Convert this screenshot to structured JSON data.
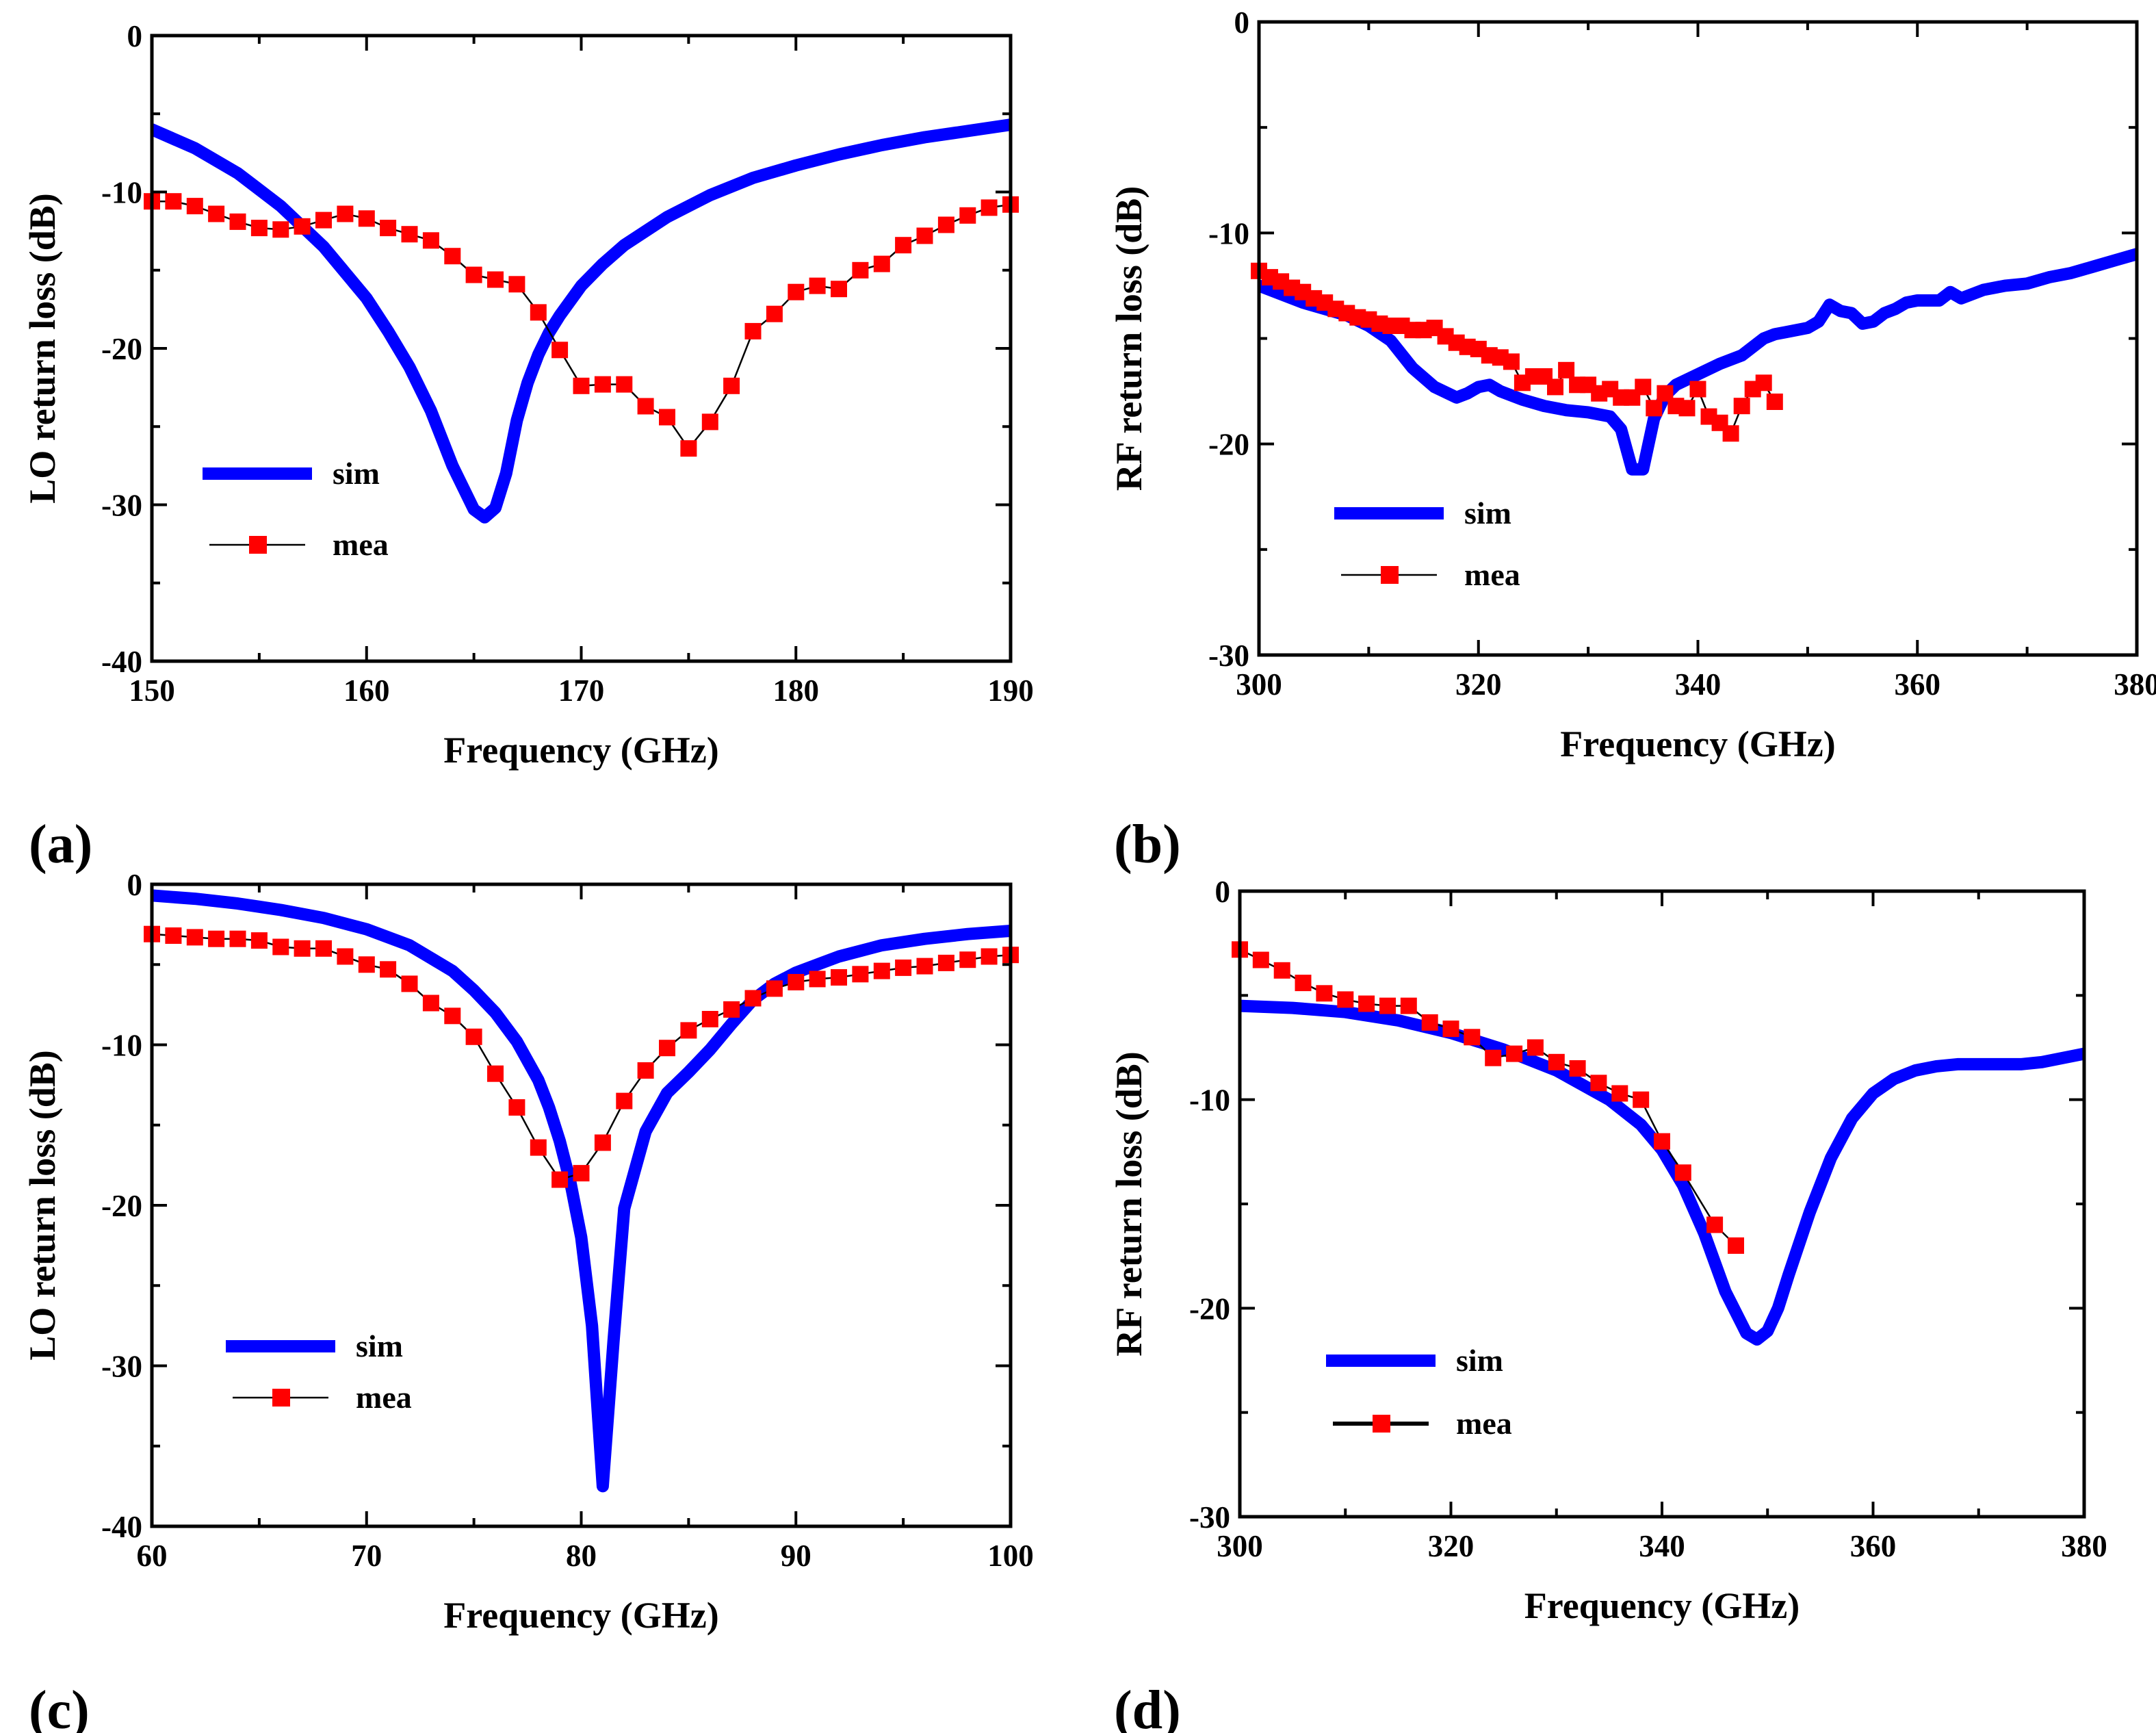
{
  "colors": {
    "sim": "#0000ff",
    "mea": "#ff0000",
    "mea_line": "#000000",
    "axis": "#000000"
  },
  "chart_data": [
    {
      "type": "line",
      "panel_label": "(a)",
      "xlabel": "Frequency (GHz)",
      "ylabel": "LO return loss (dB)",
      "xlim": [
        150,
        190
      ],
      "ylim": [
        -40,
        0
      ],
      "xticks": [
        150,
        160,
        170,
        180,
        190
      ],
      "yticks": [
        0,
        -10,
        -20,
        -30,
        -40
      ],
      "legend_position": "lower-left",
      "series": [
        {
          "name": "sim",
          "style": "line",
          "x": [
            150,
            152,
            154,
            156,
            158,
            160,
            161,
            162,
            163,
            164,
            165,
            165.5,
            166,
            166.5,
            167,
            167.5,
            168,
            168.5,
            169,
            170,
            171,
            172,
            174,
            176,
            178,
            180,
            182,
            184,
            186,
            188,
            190
          ],
          "y": [
            -6,
            -7.2,
            -8.8,
            -10.9,
            -13.5,
            -16.8,
            -18.9,
            -21.2,
            -24,
            -27.5,
            -30.3,
            -30.8,
            -30.2,
            -28,
            -24.6,
            -22.2,
            -20.4,
            -19,
            -17.9,
            -16,
            -14.6,
            -13.4,
            -11.6,
            -10.2,
            -9.1,
            -8.3,
            -7.6,
            -7,
            -6.5,
            -6.1,
            -5.7
          ]
        },
        {
          "name": "mea",
          "style": "line+square",
          "x": [
            150,
            151,
            152,
            153,
            154,
            155,
            156,
            157,
            158,
            159,
            160,
            161,
            162,
            163,
            164,
            165,
            166,
            167,
            168,
            169,
            170,
            171,
            172,
            173,
            174,
            175,
            176,
            177,
            178,
            179,
            180,
            181,
            182,
            183,
            184,
            185,
            186,
            187,
            188,
            189,
            190
          ],
          "y": [
            -10.6,
            -10.6,
            -10.9,
            -11.4,
            -11.9,
            -12.3,
            -12.4,
            -12.2,
            -11.8,
            -11.4,
            -11.7,
            -12.3,
            -12.7,
            -13.1,
            -14.1,
            -15.3,
            -15.6,
            -15.9,
            -17.7,
            -20.1,
            -22.4,
            -22.3,
            -22.3,
            -23.7,
            -24.4,
            -26.4,
            -24.7,
            -22.4,
            -18.9,
            -17.8,
            -16.4,
            -16,
            -16.2,
            -15,
            -14.6,
            -13.4,
            -12.8,
            -12.1,
            -11.5,
            -11,
            -10.8
          ]
        }
      ]
    },
    {
      "type": "line",
      "panel_label": "(b)",
      "xlabel": "Frequency (GHz)",
      "ylabel": "RF return loss (dB)",
      "xlim": [
        300,
        380
      ],
      "ylim": [
        -30,
        0
      ],
      "xticks": [
        300,
        320,
        340,
        360,
        380
      ],
      "yticks": [
        0,
        -10,
        -20,
        -30
      ],
      "legend_position": "lower-left",
      "series": [
        {
          "name": "sim",
          "style": "line",
          "x": [
            300,
            304,
            308,
            310,
            312,
            314,
            316,
            318,
            319,
            320,
            321,
            322,
            324,
            326,
            328,
            330,
            332,
            333,
            334,
            335,
            336,
            337,
            338,
            340,
            342,
            344,
            346,
            347,
            348,
            350,
            351,
            352,
            353,
            354,
            355,
            356,
            357,
            358,
            359,
            360,
            361,
            362,
            363,
            364,
            366,
            368,
            370,
            372,
            374,
            376,
            378,
            380
          ],
          "y": [
            -12.5,
            -13.3,
            -13.9,
            -14.4,
            -15.1,
            -16.4,
            -17.3,
            -17.8,
            -17.6,
            -17.3,
            -17.2,
            -17.5,
            -17.9,
            -18.2,
            -18.4,
            -18.5,
            -18.7,
            -19.3,
            -21.2,
            -21.2,
            -18.8,
            -17.7,
            -17.2,
            -16.7,
            -16.2,
            -15.8,
            -15,
            -14.8,
            -14.7,
            -14.5,
            -14.2,
            -13.4,
            -13.7,
            -13.8,
            -14.3,
            -14.2,
            -13.8,
            -13.6,
            -13.3,
            -13.2,
            -13.2,
            -13.2,
            -12.8,
            -13.1,
            -12.7,
            -12.5,
            -12.4,
            -12.1,
            -11.9,
            -11.6,
            -11.3,
            -11
          ],
          "curve": "linear"
        },
        {
          "name": "mea",
          "style": "line+square",
          "x": [
            300,
            301,
            302,
            303,
            304,
            305,
            306,
            307,
            308,
            309,
            310,
            311,
            312,
            313,
            314,
            315,
            316,
            317,
            318,
            319,
            320,
            321,
            322,
            323,
            324,
            325,
            326,
            327,
            328,
            329,
            330,
            331,
            332,
            333,
            334,
            335,
            336,
            337,
            338,
            339,
            340,
            341,
            342,
            343,
            344,
            345,
            346,
            347
          ],
          "y": [
            -11.8,
            -12.1,
            -12.3,
            -12.6,
            -12.8,
            -13.1,
            -13.3,
            -13.6,
            -13.8,
            -14,
            -14.1,
            -14.3,
            -14.4,
            -14.4,
            -14.6,
            -14.6,
            -14.5,
            -14.9,
            -15.2,
            -15.4,
            -15.5,
            -15.8,
            -15.9,
            -16.1,
            -17.1,
            -16.8,
            -16.8,
            -17.3,
            -16.5,
            -17.2,
            -17.2,
            -17.6,
            -17.4,
            -17.8,
            -17.8,
            -17.3,
            -18.3,
            -17.6,
            -18.2,
            -18.3,
            -17.4,
            -18.7,
            -19,
            -19.5,
            -18.2,
            -17.4,
            -17.1,
            -18
          ]
        }
      ]
    },
    {
      "type": "line",
      "panel_label": "(c)",
      "xlabel": "Frequency (GHz)",
      "ylabel": "LO return loss (dB)",
      "xlim": [
        60,
        100
      ],
      "ylim": [
        -40,
        0
      ],
      "xticks": [
        60,
        70,
        80,
        90,
        100
      ],
      "yticks": [
        0,
        -10,
        -20,
        -30,
        -40
      ],
      "legend_position": "lower-left",
      "series": [
        {
          "name": "sim",
          "style": "line",
          "x": [
            60,
            62,
            64,
            66,
            68,
            70,
            72,
            74,
            75,
            76,
            77,
            78,
            78.5,
            79,
            79.5,
            80,
            80.5,
            81,
            81.5,
            82,
            83,
            84,
            85,
            86,
            87,
            88,
            89,
            90,
            92,
            94,
            96,
            98,
            100
          ],
          "y": [
            -0.7,
            -0.9,
            -1.2,
            -1.6,
            -2.1,
            -2.8,
            -3.8,
            -5.4,
            -6.6,
            -8,
            -9.8,
            -12.2,
            -13.9,
            -16,
            -18.6,
            -22,
            -27.5,
            -37.5,
            -28.5,
            -20.2,
            -15.4,
            -13,
            -11.7,
            -10.3,
            -8.7,
            -7.2,
            -6.2,
            -5.5,
            -4.5,
            -3.8,
            -3.4,
            -3.1,
            -2.9
          ]
        },
        {
          "name": "mea",
          "style": "line+square",
          "x": [
            60,
            61,
            62,
            63,
            64,
            65,
            66,
            67,
            68,
            69,
            70,
            71,
            72,
            73,
            74,
            75,
            76,
            77,
            78,
            79,
            80,
            81,
            82,
            83,
            84,
            85,
            86,
            87,
            88,
            89,
            90,
            91,
            92,
            93,
            94,
            95,
            96,
            97,
            98,
            99,
            100
          ],
          "y": [
            -3.1,
            -3.2,
            -3.3,
            -3.4,
            -3.4,
            -3.5,
            -3.9,
            -4,
            -4,
            -4.5,
            -5,
            -5.3,
            -6.2,
            -7.4,
            -8.2,
            -9.5,
            -11.8,
            -13.9,
            -16.4,
            -18.4,
            -18,
            -16.1,
            -13.5,
            -11.6,
            -10.2,
            -9.1,
            -8.4,
            -7.8,
            -7.1,
            -6.5,
            -6.1,
            -5.9,
            -5.8,
            -5.6,
            -5.4,
            -5.2,
            -5.1,
            -4.9,
            -4.7,
            -4.5,
            -4.4
          ]
        }
      ]
    },
    {
      "type": "line",
      "panel_label": "(d)",
      "xlabel": "Frequency (GHz)",
      "ylabel": "RF return loss (dB)",
      "xlim": [
        300,
        380
      ],
      "ylim": [
        -30,
        0
      ],
      "xticks": [
        300,
        320,
        340,
        360,
        380
      ],
      "yticks": [
        0,
        -10,
        -20,
        -30
      ],
      "legend_position": "lower-left",
      "series": [
        {
          "name": "sim",
          "style": "line",
          "x": [
            300,
            305,
            310,
            315,
            320,
            325,
            330,
            335,
            338,
            340,
            342,
            344,
            346,
            348,
            349,
            350,
            351,
            352,
            354,
            356,
            358,
            360,
            362,
            364,
            366,
            368,
            370,
            372,
            374,
            376,
            378,
            380
          ],
          "y": [
            -5.5,
            -5.6,
            -5.8,
            -6.2,
            -6.8,
            -7.6,
            -8.6,
            -10,
            -11.2,
            -12.4,
            -14.1,
            -16.4,
            -19.2,
            -21.2,
            -21.5,
            -21.1,
            -20,
            -18.4,
            -15.4,
            -12.8,
            -10.9,
            -9.7,
            -9,
            -8.6,
            -8.4,
            -8.3,
            -8.3,
            -8.3,
            -8.3,
            -8.2,
            -8,
            -7.8
          ]
        },
        {
          "name": "mea",
          "style": "line+square",
          "x": [
            300,
            302,
            304,
            306,
            308,
            310,
            312,
            314,
            316,
            318,
            320,
            322,
            324,
            326,
            328,
            330,
            332,
            334,
            336,
            338,
            340,
            342,
            345,
            347
          ],
          "y": [
            -2.8,
            -3.3,
            -3.8,
            -4.4,
            -4.9,
            -5.2,
            -5.4,
            -5.5,
            -5.5,
            -6.3,
            -6.6,
            -7,
            -8,
            -7.8,
            -7.5,
            -8.2,
            -8.5,
            -9.2,
            -9.7,
            -10,
            -12,
            -13.5,
            -16,
            -17
          ]
        }
      ]
    }
  ]
}
